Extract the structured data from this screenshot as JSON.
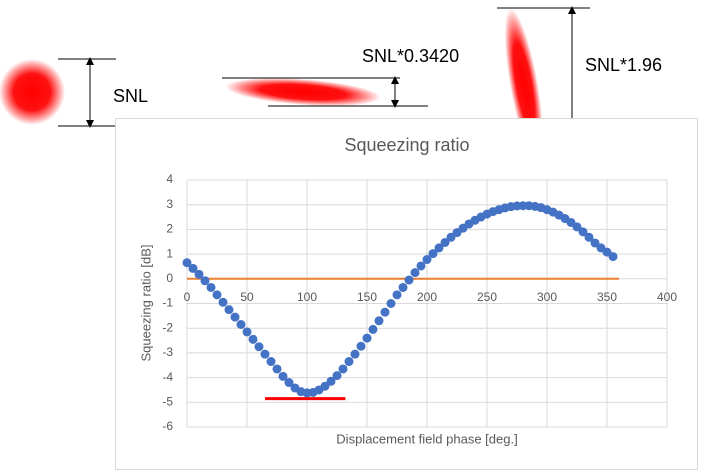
{
  "annotations": {
    "circle_label": "SNL",
    "thin_label": "SNL*0.3420",
    "tall_label": "SNL*1.96"
  },
  "chart_data": {
    "type": "scatter",
    "title": "Squeezing ratio",
    "x_label": "Displacement field phase [deg.]",
    "y_label": "Squeezing ratio [dB]",
    "color": "#4472c4",
    "x": [
      0,
      5,
      10,
      15,
      20,
      25,
      30,
      35,
      40,
      45,
      50,
      55,
      60,
      65,
      70,
      75,
      80,
      85,
      90,
      95,
      100,
      105,
      110,
      115,
      120,
      125,
      130,
      135,
      140,
      145,
      150,
      155,
      160,
      165,
      170,
      175,
      180,
      185,
      190,
      195,
      200,
      205,
      210,
      215,
      220,
      225,
      230,
      235,
      240,
      245,
      250,
      255,
      260,
      265,
      270,
      275,
      280,
      285,
      290,
      295,
      300,
      305,
      310,
      315,
      320,
      325,
      330,
      335,
      340,
      345,
      350,
      355
    ],
    "values": [
      0.65,
      0.42,
      0.18,
      -0.08,
      -0.35,
      -0.65,
      -0.95,
      -1.25,
      -1.55,
      -1.85,
      -2.15,
      -2.45,
      -2.75,
      -3.05,
      -3.35,
      -3.65,
      -3.95,
      -4.2,
      -4.42,
      -4.57,
      -4.62,
      -4.6,
      -4.5,
      -4.35,
      -4.15,
      -3.92,
      -3.65,
      -3.35,
      -3.05,
      -2.73,
      -2.4,
      -2.05,
      -1.7,
      -1.35,
      -1.0,
      -0.65,
      -0.35,
      -0.05,
      0.25,
      0.52,
      0.78,
      1.02,
      1.25,
      1.47,
      1.68,
      1.87,
      2.05,
      2.22,
      2.37,
      2.5,
      2.62,
      2.72,
      2.8,
      2.87,
      2.92,
      2.95,
      2.96,
      2.96,
      2.93,
      2.88,
      2.8,
      2.7,
      2.58,
      2.44,
      2.28,
      2.1,
      1.9,
      1.68,
      1.45,
      1.25,
      1.08,
      0.9
    ],
    "reference_lines": [
      {
        "y": 0,
        "x": [
          0,
          360
        ],
        "color": "#ed7d31"
      },
      {
        "y": -4.85,
        "x": [
          65,
          132
        ],
        "color": "#ff0000"
      }
    ],
    "xlim": [
      0,
      400
    ],
    "xticks": [
      0,
      50,
      100,
      150,
      200,
      250,
      300,
      350,
      400
    ],
    "ylim": [
      -6,
      4
    ],
    "yticks": [
      -6,
      -5,
      -4,
      -3,
      -2,
      -1,
      0,
      1,
      2,
      3,
      4
    ],
    "grid": true
  }
}
